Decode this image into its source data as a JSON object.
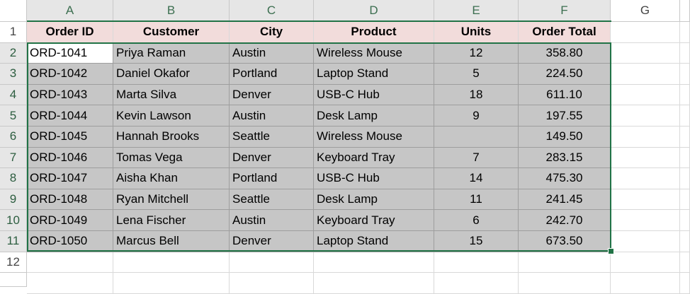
{
  "column_headers": [
    "A",
    "B",
    "C",
    "D",
    "E",
    "F",
    "G"
  ],
  "row_headers": [
    1,
    2,
    3,
    4,
    5,
    6,
    7,
    8,
    9,
    10,
    11,
    12
  ],
  "table": {
    "header": [
      "Order ID",
      "Customer",
      "City",
      "Product",
      "Units",
      "Order Total"
    ],
    "rows": [
      [
        "ORD-1041",
        "Priya Raman",
        "Austin",
        "Wireless Mouse",
        12,
        "358.80"
      ],
      [
        "ORD-1042",
        "Daniel Okafor",
        "Portland",
        "Laptop Stand",
        5,
        "224.50"
      ],
      [
        "ORD-1043",
        "Marta Silva",
        "Denver",
        "USB-C Hub",
        18,
        "611.10"
      ],
      [
        "ORD-1044",
        "Kevin Lawson",
        "Austin",
        "Desk Lamp",
        9,
        "197.55"
      ],
      [
        "ORD-1045",
        "Hannah Brooks",
        "Seattle",
        "Wireless Mouse",
        null,
        "149.50"
      ],
      [
        "ORD-1046",
        "Tomas Vega",
        "Denver",
        "Keyboard Tray",
        7,
        "283.15"
      ],
      [
        "ORD-1047",
        "Aisha Khan",
        "Portland",
        "USB-C Hub",
        14,
        "475.30"
      ],
      [
        "ORD-1048",
        "Ryan Mitchell",
        "Seattle",
        "Desk Lamp",
        11,
        "241.45"
      ],
      [
        "ORD-1049",
        "Lena Fischer",
        "Austin",
        "Keyboard Tray",
        6,
        "242.70"
      ],
      [
        "ORD-1050",
        "Marcus Bell",
        "Denver",
        "Laptop Stand",
        15,
        "673.50"
      ]
    ]
  }
}
